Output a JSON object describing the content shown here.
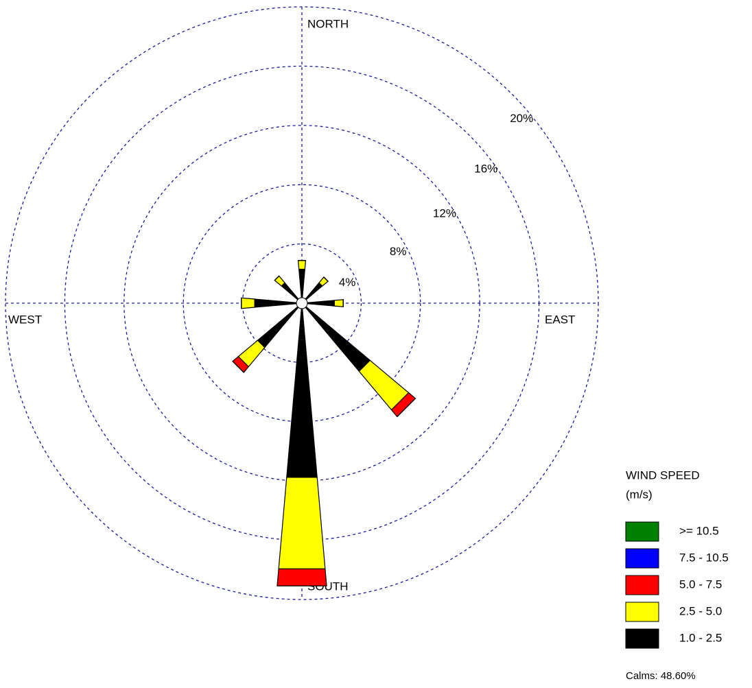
{
  "chart_data": {
    "type": "wind_rose",
    "x": [
      0,
      45,
      90,
      135,
      180,
      225,
      270,
      315
    ],
    "series": [
      {
        "name": ">= 10.5",
        "color": "#008000",
        "values": [
          0,
          0,
          0,
          0,
          0,
          0,
          0,
          0
        ]
      },
      {
        "name": "7.5 - 10.5",
        "color": "#0000ff",
        "values": [
          0,
          0,
          0,
          0,
          0,
          0,
          0,
          0
        ]
      },
      {
        "name": "5.0 -  7.5",
        "color": "#ff0000",
        "values": [
          0,
          0,
          0,
          0.6,
          1.15,
          0.5,
          0,
          0
        ]
      },
      {
        "name": "2.5 -  5.0",
        "color": "#ffff00",
        "values": [
          0.6,
          0.5,
          0.6,
          3.4,
          6.2,
          1.7,
          0.9,
          0.6
        ]
      },
      {
        "name": "1.0 -  2.5",
        "color": "#000000",
        "values": [
          2.3,
          1.8,
          2.2,
          6.0,
          11.8,
          3.9,
          3.2,
          1.8
        ]
      }
    ],
    "rlim": [
      0,
      20
    ],
    "rticks": [
      {
        "value": 4,
        "label": "4%"
      },
      {
        "value": 8,
        "label": "8%"
      },
      {
        "value": 12,
        "label": "12%"
      },
      {
        "value": 16,
        "label": "16%"
      },
      {
        "value": 20,
        "label": "20%"
      }
    ],
    "compass_labels": [
      "NORTH",
      "EAST",
      "SOUTH",
      "WEST"
    ],
    "legend_title": [
      "WIND SPEED",
      "(m/s)"
    ],
    "calms": "Calms: 48.60%"
  }
}
